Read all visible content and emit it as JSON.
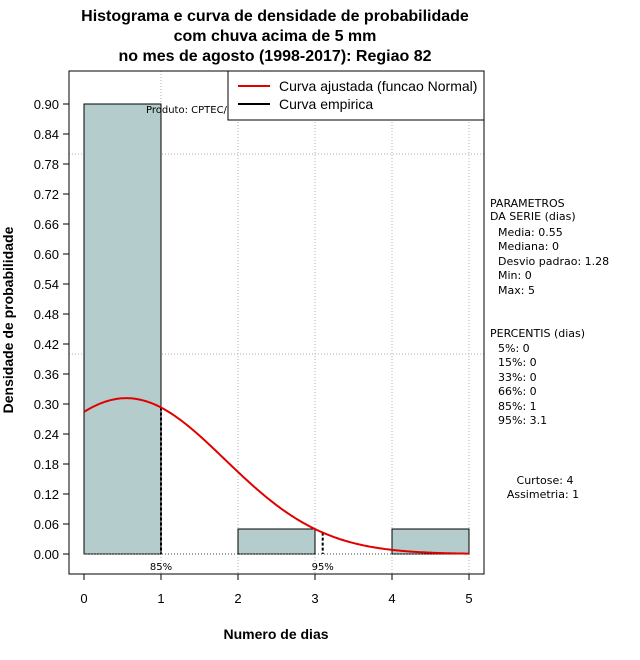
{
  "chart_data": {
    "type": "bar",
    "title_lines": [
      "Histograma e curva de densidade de probabilidade",
      "com chuva acima de 5 mm",
      "no mes de agosto (1998-2017): Regiao 82"
    ],
    "xlabel": "Numero de dias",
    "ylabel": "Densidade de probabilidade",
    "xlim": [
      -0.2,
      5.2
    ],
    "ylim": [
      -0.1,
      1.08
    ],
    "x_ticks": [
      "0",
      "1",
      "2",
      "3",
      "4",
      "5"
    ],
    "y_ticks": [
      "0.00",
      "0.06",
      "0.12",
      "0.18",
      "0.24",
      "0.30",
      "0.36",
      "0.42",
      "0.48",
      "0.54",
      "0.60",
      "0.66",
      "0.72",
      "0.78",
      "0.84",
      "0.90"
    ],
    "bins": [
      {
        "start": 0,
        "end": 1,
        "value": 0.9
      },
      {
        "start": 1,
        "end": 2,
        "value": 0.0
      },
      {
        "start": 2,
        "end": 3,
        "value": 0.05
      },
      {
        "start": 3,
        "end": 4,
        "value": 0.0
      },
      {
        "start": 4,
        "end": 5,
        "value": 0.05
      }
    ],
    "fitted_curve": {
      "name": "Curva ajustada (funcao Normal)",
      "mean": 0.55,
      "sd": 1.28,
      "color": "#e00000"
    },
    "empirical_legend": "Curva empirica",
    "percentile_markers": [
      {
        "x": 1.0,
        "label": "85%"
      },
      {
        "x": 3.1,
        "label": "95%"
      }
    ],
    "source_label": "Produto: CPTEC/INPE",
    "bar_color": "#b4cccc",
    "grid_color": "#b0b0b0"
  },
  "parameters": {
    "heading_1": "PARAMETROS",
    "heading_2": "DA SERIE (dias)",
    "lines": [
      "Media: 0.55",
      "Mediana: 0",
      "Desvio padrao: 1.28",
      "Min: 0",
      "Max: 5"
    ]
  },
  "percentiles": {
    "heading": "PERCENTIS (dias)",
    "lines": [
      "5%: 0",
      "15%: 0",
      "33%: 0",
      "66%: 0",
      "85%: 1",
      "95%: 3.1"
    ]
  },
  "shape": {
    "lines": [
      "Curtose: 4",
      "Assimetria: 1"
    ]
  }
}
